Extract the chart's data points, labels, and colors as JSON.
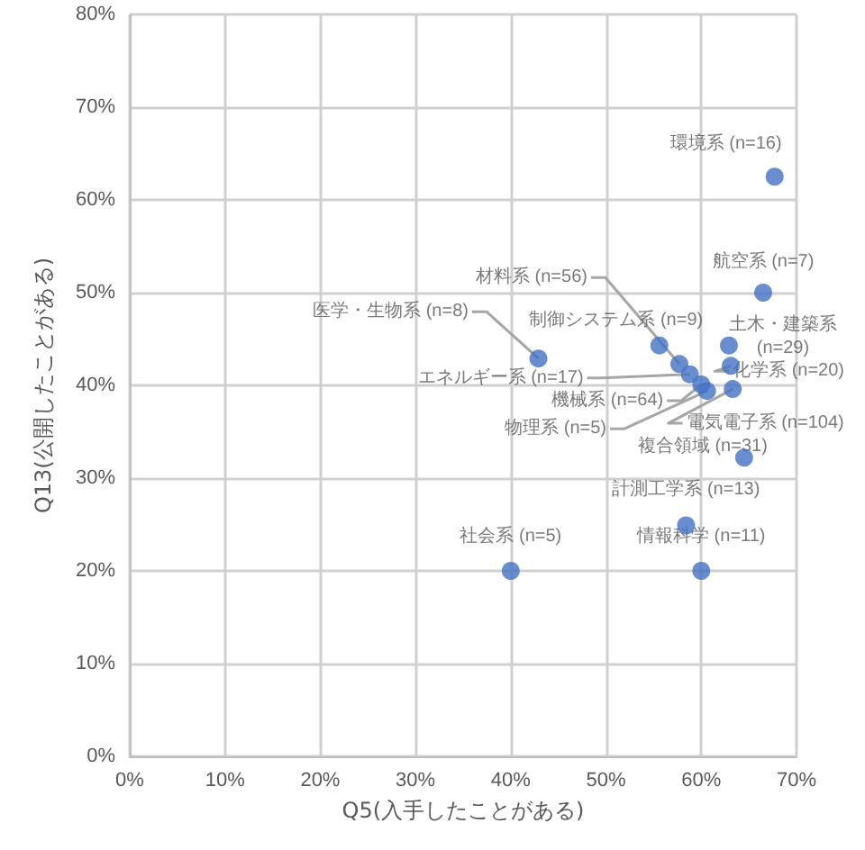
{
  "chart_data": {
    "type": "scatter",
    "xlabel": "Q5(入手したことがある)",
    "ylabel": "Q13(公開したことがある)",
    "x": [
      67.7,
      66.5,
      42.9,
      55.6,
      62.9,
      63.1,
      57.7,
      58.8,
      60.0,
      60.6,
      63.3,
      64.5,
      58.4,
      40.0,
      60.0
    ],
    "values": [
      62.5,
      50.0,
      42.9,
      44.3,
      44.3,
      42.1,
      42.3,
      41.2,
      40.1,
      39.4,
      39.6,
      32.2,
      24.9,
      20.0,
      20.0
    ],
    "color": "#4472c4",
    "marker": "circle",
    "grid": true,
    "xlim": [
      0,
      70
    ],
    "xticks": [
      {
        "value": 0,
        "label": "0%"
      },
      {
        "value": 10,
        "label": "10%"
      },
      {
        "value": 20,
        "label": "20%"
      },
      {
        "value": 30,
        "label": "30%"
      },
      {
        "value": 40,
        "label": "40%"
      },
      {
        "value": 50,
        "label": "50%"
      },
      {
        "value": 60,
        "label": "60%"
      },
      {
        "value": 70,
        "label": "70%"
      }
    ],
    "ylim": [
      0,
      80
    ],
    "yticks": [
      {
        "value": 0,
        "label": "0%"
      },
      {
        "value": 10,
        "label": "10%"
      },
      {
        "value": 20,
        "label": "20%"
      },
      {
        "value": 30,
        "label": "30%"
      },
      {
        "value": 40,
        "label": "40%"
      },
      {
        "value": 50,
        "label": "50%"
      },
      {
        "value": 60,
        "label": "60%"
      },
      {
        "value": 70,
        "label": "70%"
      },
      {
        "value": 80,
        "label": "80%"
      }
    ],
    "annotations": [
      {
        "text": "環境系 (n=16)",
        "x": 67.7,
        "y": 62.5
      },
      {
        "text": "航空系 (n=7)",
        "x": 66.5,
        "y": 50.0
      },
      {
        "text": "医学・生物系 (n=8)",
        "x": 42.9,
        "y": 42.9
      },
      {
        "text": "制御システム系 (n=9)",
        "x": 55.6,
        "y": 44.3
      },
      {
        "text": "土木・建築系\n(n=29)",
        "x": 62.9,
        "y": 44.3
      },
      {
        "text": "化学系 (n=20)",
        "x": 63.1,
        "y": 42.1
      },
      {
        "text": "材料系 (n=56)",
        "x": 57.7,
        "y": 42.3
      },
      {
        "text": "エネルギー系 (n=17)",
        "x": 58.8,
        "y": 41.2
      },
      {
        "text": "機械系 (n=64)",
        "x": 60.0,
        "y": 40.1
      },
      {
        "text": "物理系 (n=5)",
        "x": 60.6,
        "y": 39.4
      },
      {
        "text": "電気電子系 (n=104)",
        "x": 63.3,
        "y": 39.6
      },
      {
        "text": "複合領域 (n=31)",
        "x": 64.5,
        "y": 32.2
      },
      {
        "text": "計測工学系 (n=13)",
        "x": 58.4,
        "y": 24.9
      },
      {
        "text": "社会系 (n=5)",
        "x": 40.0,
        "y": 20.0
      },
      {
        "text": "情報科学 (n=11)",
        "x": 60.0,
        "y": 20.0
      }
    ]
  }
}
